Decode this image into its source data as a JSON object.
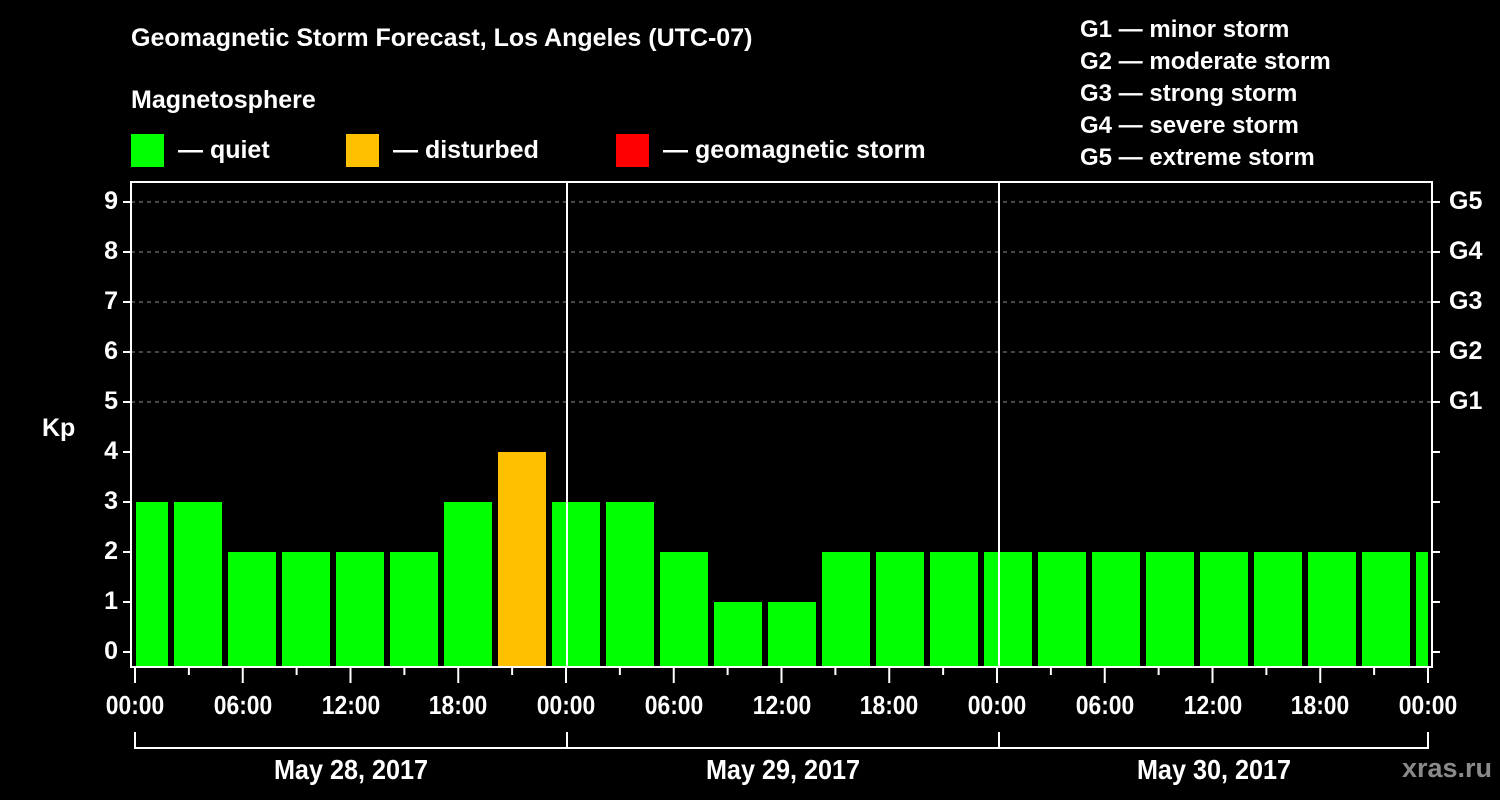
{
  "title": "Geomagnetic Storm Forecast, Los Angeles (UTC-07)",
  "subtitle": "Magnetosphere",
  "legend": [
    {
      "label": "— quiet",
      "color": "#00ff00"
    },
    {
      "label": "— disturbed",
      "color": "#ffc000"
    },
    {
      "label": "— geomagnetic storm",
      "color": "#ff0000"
    }
  ],
  "g_scale": [
    "G1 — minor storm",
    "G2 — moderate storm",
    "G3 — strong storm",
    "G4 — severe storm",
    "G5 — extreme storm"
  ],
  "watermark": "xras.ru",
  "chart_data": {
    "type": "bar",
    "title": "Geomagnetic Storm Forecast, Los Angeles (UTC-07)",
    "xlabel": "",
    "ylabel": "Kp",
    "ylim": [
      0,
      9
    ],
    "yticks": [
      "0",
      "1",
      "2",
      "3",
      "4",
      "5",
      "6",
      "7",
      "8",
      "9"
    ],
    "right_ticks": [
      {
        "kp": 5,
        "label": "G1"
      },
      {
        "kp": 6,
        "label": "G2"
      },
      {
        "kp": 7,
        "label": "G3"
      },
      {
        "kp": 8,
        "label": "G4"
      },
      {
        "kp": 9,
        "label": "G5"
      }
    ],
    "grid": "dashed horizontal at Kp 5-9",
    "xticks": [
      "00:00",
      "06:00",
      "12:00",
      "18:00",
      "00:00",
      "06:00",
      "12:00",
      "18:00",
      "00:00",
      "06:00",
      "12:00",
      "18:00",
      "00:00"
    ],
    "dates": [
      "May 28, 2017",
      "May 29, 2017",
      "May 30, 2017"
    ],
    "categories": [
      "May 28 00:00",
      "May 28 03:00",
      "May 28 06:00",
      "May 28 09:00",
      "May 28 12:00",
      "May 28 15:00",
      "May 28 18:00",
      "May 28 21:00",
      "May 29 00:00",
      "May 29 03:00",
      "May 29 06:00",
      "May 29 09:00",
      "May 29 12:00",
      "May 29 15:00",
      "May 29 18:00",
      "May 29 21:00",
      "May 30 00:00",
      "May 30 03:00",
      "May 30 06:00",
      "May 30 09:00",
      "May 30 12:00",
      "May 30 15:00",
      "May 30 18:00",
      "May 30 21:00",
      "May 31 00:00"
    ],
    "values": [
      3,
      3,
      2,
      2,
      2,
      2,
      3,
      4,
      3,
      3,
      2,
      1,
      1,
      2,
      2,
      2,
      2,
      2,
      2,
      2,
      2,
      2,
      2,
      2,
      2
    ],
    "colors": [
      "quiet",
      "quiet",
      "quiet",
      "quiet",
      "quiet",
      "quiet",
      "quiet",
      "disturbed",
      "quiet",
      "quiet",
      "quiet",
      "quiet",
      "quiet",
      "quiet",
      "quiet",
      "quiet",
      "quiet",
      "quiet",
      "quiet",
      "quiet",
      "quiet",
      "quiet",
      "quiet",
      "quiet",
      "quiet"
    ],
    "color_map": {
      "quiet": "#00ff00",
      "disturbed": "#ffc000",
      "storm": "#ff0000"
    }
  }
}
